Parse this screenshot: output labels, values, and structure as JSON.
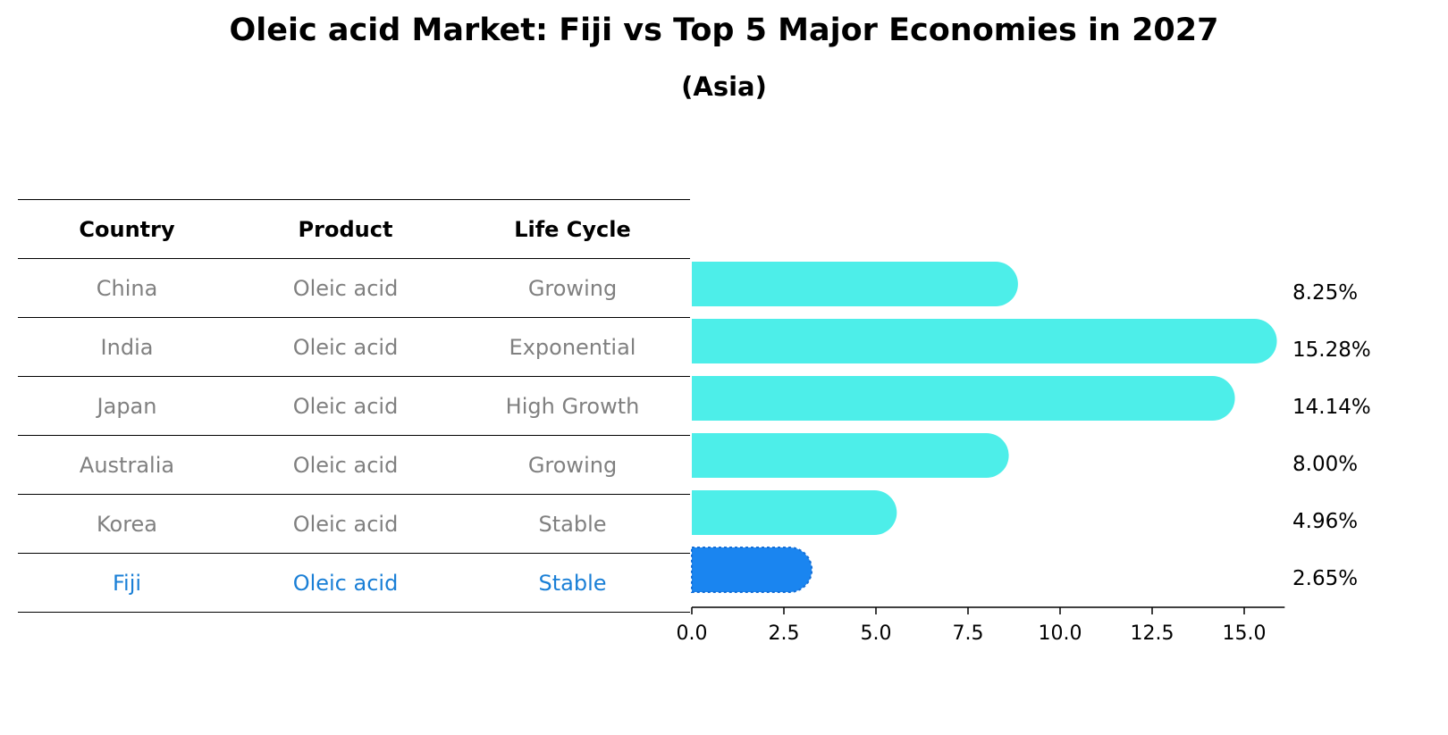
{
  "title": "Oleic acid Market: Fiji vs Top 5 Major Economies in 2027",
  "subtitle": "(Asia)",
  "table": {
    "headers": [
      "Country",
      "Product",
      "Life Cycle"
    ],
    "rows": [
      {
        "country": "China",
        "product": "Oleic acid",
        "life_cycle": "Growing"
      },
      {
        "country": "India",
        "product": "Oleic acid",
        "life_cycle": "Exponential"
      },
      {
        "country": "Japan",
        "product": "Oleic acid",
        "life_cycle": "High Growth"
      },
      {
        "country": "Australia",
        "product": "Oleic acid",
        "life_cycle": "Growing"
      },
      {
        "country": "Korea",
        "product": "Oleic acid",
        "life_cycle": "Stable"
      },
      {
        "country": "Fiji",
        "product": "Oleic acid",
        "life_cycle": "Stable"
      }
    ]
  },
  "chart_data": {
    "type": "bar",
    "orientation": "horizontal",
    "categories": [
      "China",
      "India",
      "Japan",
      "Australia",
      "Korea",
      "Fiji"
    ],
    "values": [
      8.25,
      15.28,
      14.14,
      8.0,
      4.96,
      2.65
    ],
    "value_labels": [
      "8.25%",
      "15.28%",
      "14.14%",
      "8.00%",
      "4.96%",
      "2.65%"
    ],
    "highlight_category": "Fiji",
    "xlim": [
      0,
      16.1
    ],
    "xticks": [
      0.0,
      2.5,
      5.0,
      7.5,
      10.0,
      12.5,
      15.0
    ],
    "xtick_labels": [
      "0.0",
      "2.5",
      "5.0",
      "7.5",
      "10.0",
      "12.5",
      "15.0"
    ],
    "colors": {
      "default": "#4deee9",
      "highlight": "#1a85f0"
    },
    "grid": false
  }
}
